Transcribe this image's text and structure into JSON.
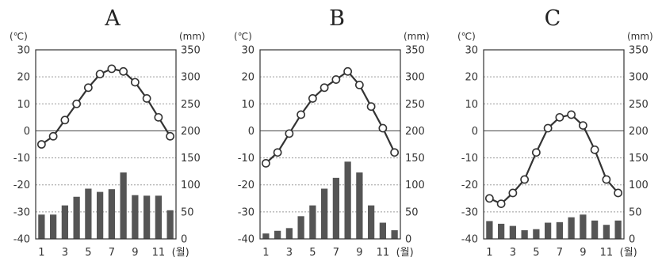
{
  "chart_data": [
    {
      "type": "bar",
      "title": "A",
      "left_unit": "(℃)",
      "right_unit": "(mm)",
      "x_ticks": [
        "1",
        "3",
        "5",
        "7",
        "9",
        "11"
      ],
      "x_unit": "(월)",
      "left_ticks": [
        "30",
        "20",
        "10",
        "0",
        "-10",
        "-20",
        "-30",
        "-40"
      ],
      "right_ticks": [
        "350",
        "300",
        "250",
        "200",
        "150",
        "100",
        "50",
        "0"
      ],
      "ylim_temp": [
        -40,
        30
      ],
      "ylim_precip": [
        0,
        350
      ],
      "grid": true,
      "categories": [
        "1",
        "2",
        "3",
        "4",
        "5",
        "6",
        "7",
        "8",
        "9",
        "10",
        "11",
        "12"
      ],
      "temperature": [
        -5,
        -2,
        4,
        10,
        16,
        21,
        23,
        22,
        18,
        12,
        5,
        -2
      ],
      "precipitation": [
        45,
        45,
        62,
        78,
        93,
        87,
        92,
        123,
        81,
        80,
        80,
        53
      ]
    },
    {
      "type": "bar",
      "title": "B",
      "left_unit": "(℃)",
      "right_unit": "(mm)",
      "x_ticks": [
        "1",
        "3",
        "5",
        "7",
        "9",
        "11"
      ],
      "x_unit": "(월)",
      "left_ticks": [
        "30",
        "20",
        "10",
        "0",
        "-10",
        "-20",
        "-30",
        "-40"
      ],
      "right_ticks": [
        "350",
        "300",
        "250",
        "200",
        "150",
        "100",
        "50",
        "0"
      ],
      "ylim_temp": [
        -40,
        30
      ],
      "ylim_precip": [
        0,
        350
      ],
      "grid": true,
      "categories": [
        "1",
        "2",
        "3",
        "4",
        "5",
        "6",
        "7",
        "8",
        "9",
        "10",
        "11",
        "12"
      ],
      "temperature": [
        -12,
        -8,
        -1,
        6,
        12,
        16,
        19,
        22,
        17,
        9,
        1,
        -8
      ],
      "precipitation": [
        10,
        15,
        20,
        42,
        62,
        93,
        113,
        143,
        123,
        62,
        30,
        16
      ]
    },
    {
      "type": "bar",
      "title": "C",
      "left_unit": "(℃)",
      "right_unit": "(mm)",
      "x_ticks": [
        "1",
        "3",
        "5",
        "7",
        "9",
        "11"
      ],
      "x_unit": "(월)",
      "left_ticks": [
        "30",
        "20",
        "10",
        "0",
        "-10",
        "-20",
        "-30",
        "-40"
      ],
      "right_ticks": [
        "350",
        "300",
        "250",
        "200",
        "150",
        "100",
        "50",
        "0"
      ],
      "ylim_temp": [
        -40,
        30
      ],
      "ylim_precip": [
        0,
        350
      ],
      "grid": true,
      "categories": [
        "1",
        "2",
        "3",
        "4",
        "5",
        "6",
        "7",
        "8",
        "9",
        "10",
        "11",
        "12"
      ],
      "temperature": [
        -25,
        -27,
        -23,
        -18,
        -8,
        1,
        5,
        6,
        2,
        -7,
        -18,
        -23
      ],
      "precipitation": [
        33,
        28,
        24,
        16,
        18,
        30,
        31,
        40,
        45,
        34,
        26,
        34
      ]
    }
  ]
}
